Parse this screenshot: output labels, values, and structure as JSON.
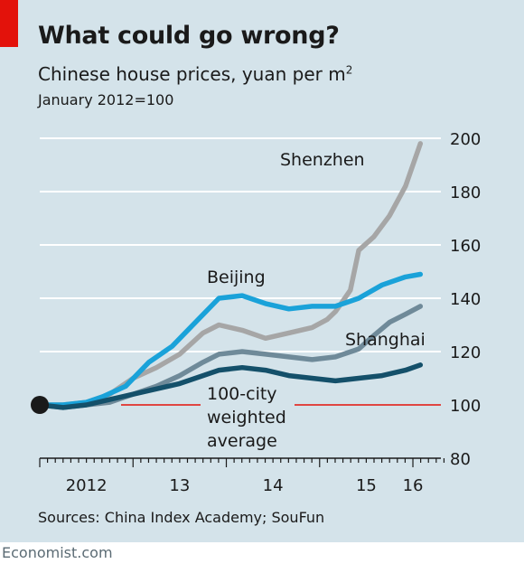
{
  "header": {
    "title": "What could go wrong?",
    "subtitle_main": "Chinese house prices, yuan per m",
    "subtitle_sup": "2",
    "subtitle_base": "January 2012=100"
  },
  "footer": {
    "sources": "Sources: China Index Academy; SouFun",
    "brand": "Economist.com"
  },
  "colors": {
    "background": "#d4e3ea",
    "accent_red": "#e3120b",
    "shenzhen": "#a6a6a6",
    "beijing": "#1aa2d9",
    "shanghai": "#6f8a99",
    "average": "#14506a"
  },
  "chart_data": {
    "type": "line",
    "title": "What could go wrong?",
    "subtitle": "Chinese house prices, yuan per m2",
    "ylabel": "January 2012=100",
    "ylim": [
      80,
      200
    ],
    "yticks": [
      80,
      100,
      120,
      140,
      160,
      180,
      200
    ],
    "ytick_labels": [
      "80",
      "100",
      "120",
      "140",
      "160",
      "180",
      "200"
    ],
    "xlim": [
      2012.0,
      2016.3
    ],
    "xtick_labels": [
      {
        "label": "2012",
        "x": 2012.5
      },
      {
        "label": "13",
        "x": 2013.5
      },
      {
        "label": "14",
        "x": 2014.5
      },
      {
        "label": "15",
        "x": 2015.5
      },
      {
        "label": "16",
        "x": 2016.0
      }
    ],
    "baseline": 100,
    "grid": true,
    "series": [
      {
        "name": "Shenzhen",
        "color": "#a6a6a6",
        "points": [
          [
            2012.0,
            100
          ],
          [
            2012.25,
            100
          ],
          [
            2012.5,
            101
          ],
          [
            2012.75,
            104
          ],
          [
            2013.0,
            110
          ],
          [
            2013.25,
            114
          ],
          [
            2013.5,
            119
          ],
          [
            2013.75,
            127
          ],
          [
            2013.92,
            130
          ],
          [
            2014.17,
            128
          ],
          [
            2014.42,
            125
          ],
          [
            2014.67,
            127
          ],
          [
            2014.92,
            129
          ],
          [
            2015.08,
            132
          ],
          [
            2015.17,
            135
          ],
          [
            2015.33,
            143
          ],
          [
            2015.42,
            158
          ],
          [
            2015.58,
            163
          ],
          [
            2015.75,
            171
          ],
          [
            2015.92,
            182
          ],
          [
            2016.08,
            198
          ]
        ]
      },
      {
        "name": "Beijing",
        "color": "#1aa2d9",
        "points": [
          [
            2012.0,
            100
          ],
          [
            2012.25,
            100
          ],
          [
            2012.5,
            101
          ],
          [
            2012.67,
            103
          ],
          [
            2012.92,
            107
          ],
          [
            2013.17,
            116
          ],
          [
            2013.42,
            122
          ],
          [
            2013.67,
            131
          ],
          [
            2013.92,
            140
          ],
          [
            2014.17,
            141
          ],
          [
            2014.42,
            138
          ],
          [
            2014.67,
            136
          ],
          [
            2014.92,
            137
          ],
          [
            2015.17,
            137
          ],
          [
            2015.42,
            140
          ],
          [
            2015.67,
            145
          ],
          [
            2015.92,
            148
          ],
          [
            2016.08,
            149
          ]
        ]
      },
      {
        "name": "Shanghai",
        "color": "#6f8a99",
        "points": [
          [
            2012.0,
            100
          ],
          [
            2012.25,
            99
          ],
          [
            2012.5,
            100
          ],
          [
            2012.75,
            101
          ],
          [
            2013.0,
            104
          ],
          [
            2013.25,
            107
          ],
          [
            2013.5,
            111
          ],
          [
            2013.75,
            116
          ],
          [
            2013.92,
            119
          ],
          [
            2014.17,
            120
          ],
          [
            2014.42,
            119
          ],
          [
            2014.67,
            118
          ],
          [
            2014.92,
            117
          ],
          [
            2015.17,
            118
          ],
          [
            2015.42,
            121
          ],
          [
            2015.58,
            126
          ],
          [
            2015.75,
            131
          ],
          [
            2015.92,
            134
          ],
          [
            2016.08,
            137
          ]
        ]
      },
      {
        "name": "100-city weighted average",
        "color": "#14506a",
        "points": [
          [
            2012.0,
            100
          ],
          [
            2012.25,
            99
          ],
          [
            2012.5,
            100
          ],
          [
            2012.75,
            102
          ],
          [
            2013.0,
            104
          ],
          [
            2013.25,
            106
          ],
          [
            2013.5,
            108
          ],
          [
            2013.75,
            111
          ],
          [
            2013.92,
            113
          ],
          [
            2014.17,
            114
          ],
          [
            2014.42,
            113
          ],
          [
            2014.67,
            111
          ],
          [
            2014.92,
            110
          ],
          [
            2015.17,
            109
          ],
          [
            2015.42,
            110
          ],
          [
            2015.67,
            111
          ],
          [
            2015.92,
            113
          ],
          [
            2016.08,
            115
          ]
        ]
      }
    ],
    "labels": {
      "shenzhen": "Shenzhen",
      "beijing": "Beijing",
      "shanghai": "Shanghai",
      "average_line1": "100-city",
      "average_line2": "weighted",
      "average_line3": "average"
    }
  }
}
